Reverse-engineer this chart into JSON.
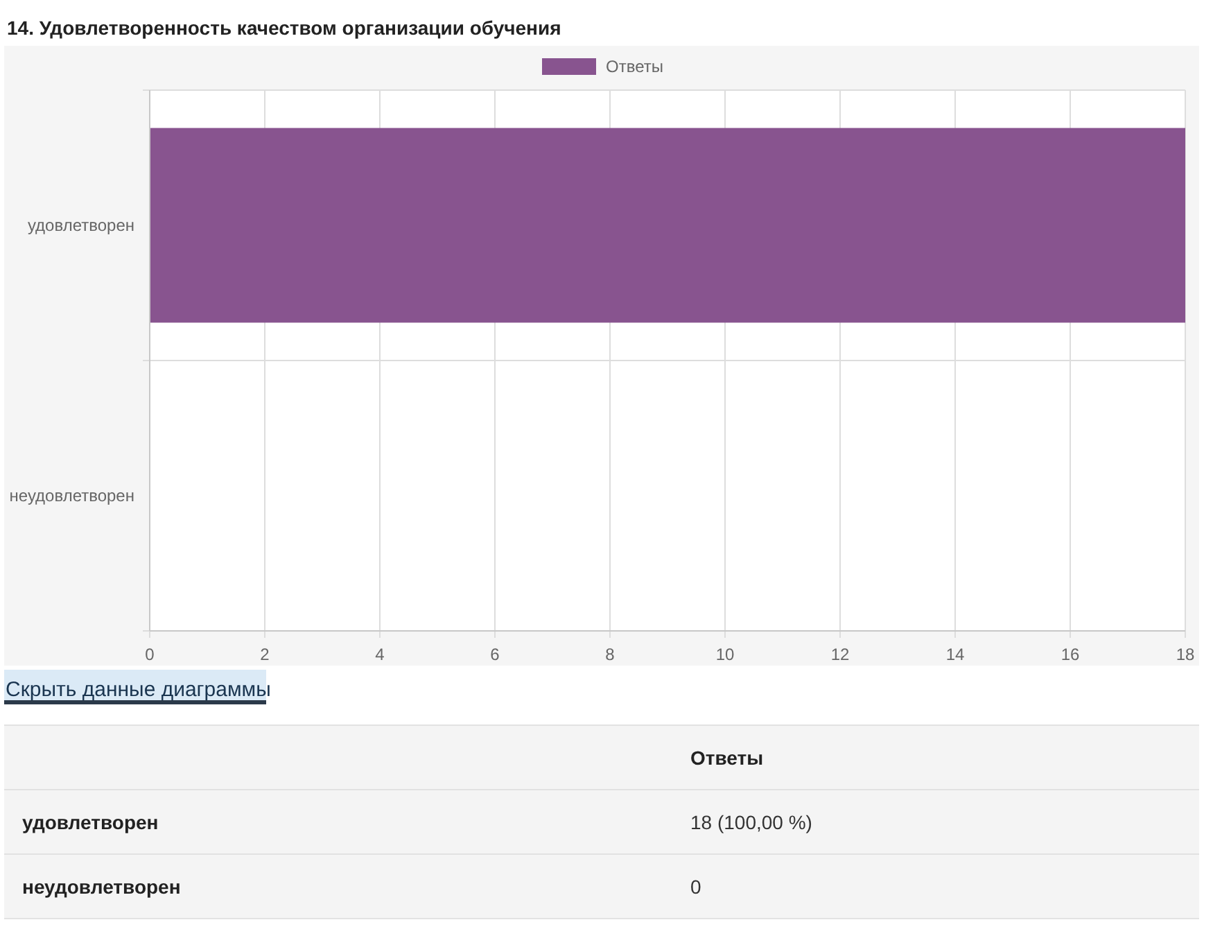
{
  "chart_data": [
    {
      "type": "bar",
      "orientation": "horizontal",
      "title": "14. Удовлетворенность качеством организации обучения",
      "categories": [
        "удовлетворен",
        "неудовлетворен"
      ],
      "series": [
        {
          "name": "Ответы",
          "color": "#88548f",
          "values": [
            18,
            0
          ]
        }
      ],
      "xlim": [
        0,
        18
      ],
      "xticks": [
        0,
        2,
        4,
        6,
        8,
        10,
        12,
        14,
        16,
        18
      ],
      "grid": true,
      "legend": "top",
      "annotations": [
        "Скрыть данные диаграммы"
      ]
    },
    {
      "type": "other",
      "annotations": [
        "Ответы",
        "удовлетворен",
        "18 (100,00 %)",
        "неудовлетворен",
        "0"
      ]
    }
  ]
}
